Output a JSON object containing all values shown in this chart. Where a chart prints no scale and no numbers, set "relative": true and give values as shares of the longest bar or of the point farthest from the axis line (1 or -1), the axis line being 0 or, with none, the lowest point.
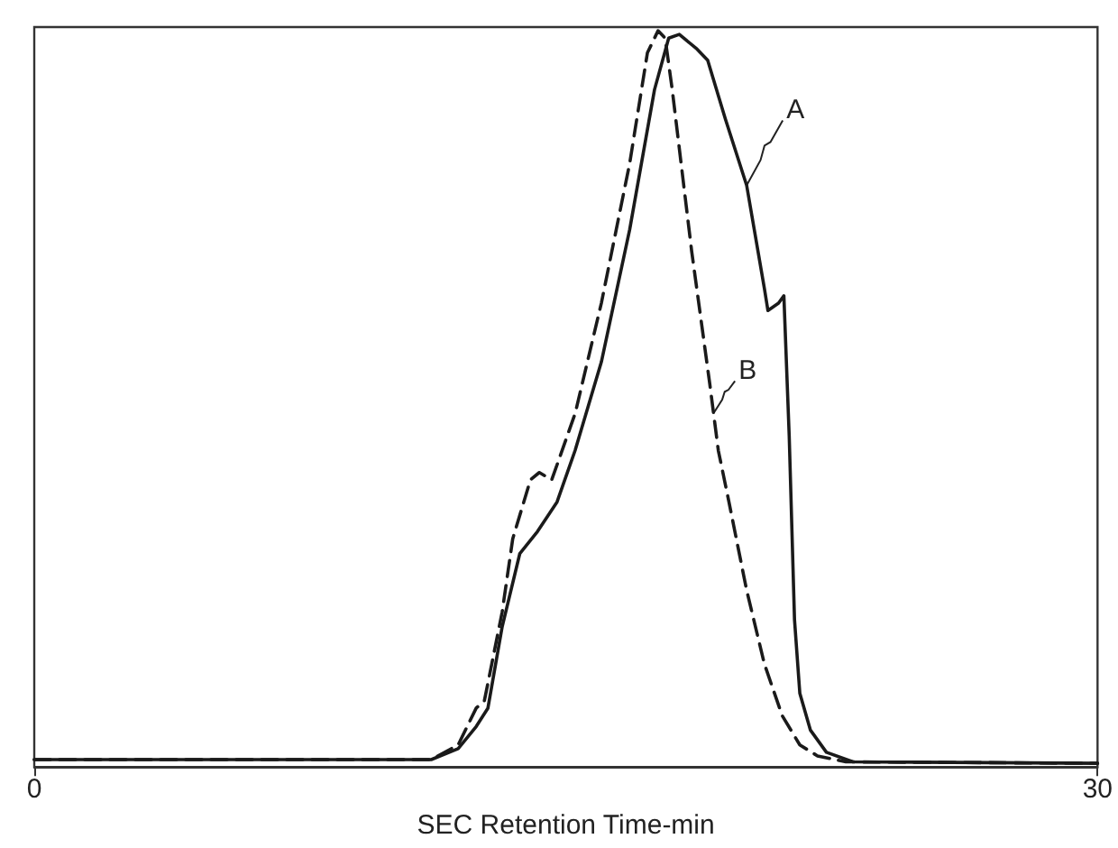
{
  "chart_data": {
    "type": "line",
    "xlabel": "SEC Retention Time-min",
    "relative": true,
    "xlim": [
      0,
      30
    ],
    "xticks": [
      0,
      30
    ],
    "grid": false,
    "marker": "none",
    "series": [
      {
        "color": "#1a1a1a",
        "line_style": "solid",
        "x": [
          0,
          5,
          10,
          11.2,
          11.96,
          12.47,
          12.8,
          13.2,
          13.7,
          14.2,
          14.75,
          15.26,
          16.0,
          16.8,
          17.5,
          17.9,
          18.2,
          18.7,
          19.0,
          19.5,
          20.1,
          20.6,
          20.7,
          21.0,
          21.15,
          21.3,
          21.45,
          21.6,
          21.9,
          22.35,
          23.1,
          30
        ],
        "values": [
          0.01,
          0.01,
          0.01,
          0.01,
          0.025,
          0.055,
          0.08,
          0.19,
          0.29,
          0.32,
          0.36,
          0.43,
          0.55,
          0.73,
          0.92,
          0.99,
          0.995,
          0.975,
          0.96,
          0.88,
          0.79,
          0.65,
          0.62,
          0.63,
          0.64,
          0.45,
          0.2,
          0.1,
          0.05,
          0.02,
          0.007,
          0.005
        ]
      },
      {
        "color": "#1a1a1a",
        "line_style": "dashed",
        "x": [
          0,
          5,
          10,
          11.2,
          11.96,
          12.47,
          12.7,
          13.2,
          13.5,
          14.0,
          14.25,
          14.6,
          15.26,
          16.0,
          16.8,
          17.3,
          17.6,
          17.8,
          18.0,
          18.55,
          19.06,
          19.3,
          19.6,
          20.1,
          20.6,
          21.1,
          21.6,
          22.1,
          22.9,
          30
        ],
        "values": [
          0.01,
          0.01,
          0.01,
          0.01,
          0.03,
          0.08,
          0.09,
          0.21,
          0.31,
          0.39,
          0.4,
          0.39,
          0.48,
          0.63,
          0.82,
          0.97,
          1.0,
          0.99,
          0.92,
          0.7,
          0.52,
          0.43,
          0.36,
          0.24,
          0.14,
          0.07,
          0.03,
          0.015,
          0.007,
          0.005
        ]
      }
    ],
    "annotations": [
      {
        "text": "A",
        "x": 20.1,
        "y": 0.79
      },
      {
        "text": "B",
        "x": 19.16,
        "y": 0.48
      }
    ]
  }
}
